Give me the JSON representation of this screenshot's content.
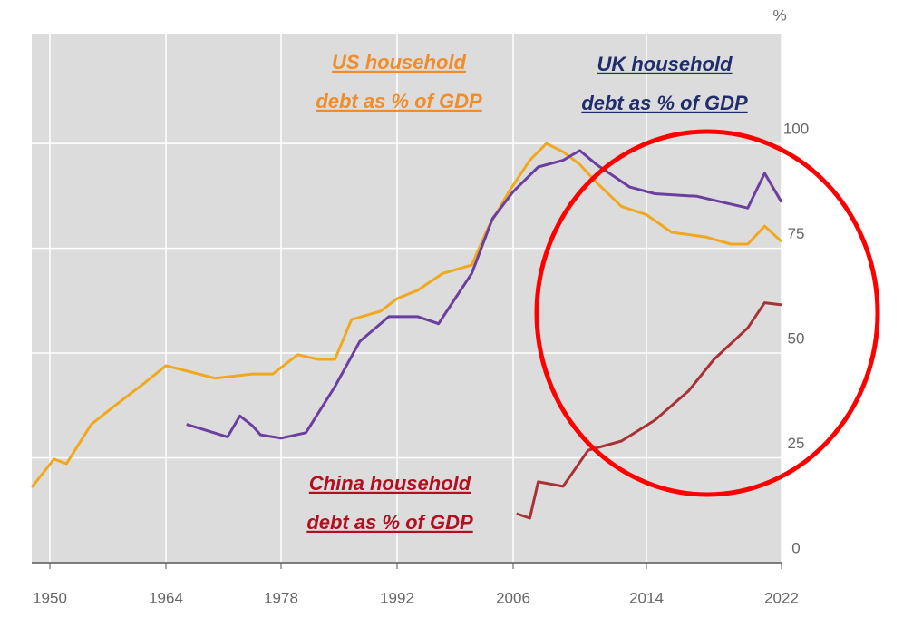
{
  "chart_data": {
    "type": "line",
    "unit_label": "%",
    "xlim": [
      1948,
      2022
    ],
    "xticks": [
      1950,
      1964,
      1978,
      1992,
      2006,
      2014,
      2022
    ],
    "ylim": [
      0,
      126
    ],
    "yticks": [
      0,
      25,
      50,
      75,
      100
    ],
    "grid": true,
    "annotations": [
      {
        "lines": [
          "US household",
          "debt as % of GDP"
        ],
        "color": "#f28c28"
      },
      {
        "lines": [
          "UK household",
          "debt as % of GDP"
        ],
        "color": "#1f2d6b"
      },
      {
        "lines": [
          "China household",
          "debt as % of GDP"
        ],
        "color": "#b01020"
      }
    ],
    "series": [
      {
        "color": "#f0a81e",
        "x": [
          1948,
          1950.5,
          1952,
          1955,
          1958,
          1961.5,
          1964,
          1966,
          1970,
          1974.5,
          1977,
          1980,
          1982.5,
          1984.5,
          1986.5,
          1990,
          1992,
          1994.5,
          1997.5,
          2001,
          2003,
          2005.5,
          2007,
          2008,
          2009,
          2010,
          2011,
          2012.5,
          2014,
          2015.5,
          2017.5,
          2019,
          2020,
          2021,
          2022
        ],
        "values": [
          18,
          24.7,
          23.6,
          33,
          37.7,
          43,
          47,
          46,
          44,
          45,
          45,
          49.6,
          48.5,
          48.5,
          58,
          60,
          63,
          65,
          69,
          71,
          80,
          88.5,
          96,
          100,
          98,
          95,
          90.7,
          85,
          83,
          78.8,
          77.7,
          76,
          76,
          80.3,
          76.6
        ]
      },
      {
        "color": "#6b3fa0",
        "x": [
          1966.5,
          1971.5,
          1973,
          1974.5,
          1975.5,
          1978,
          1981,
          1984.5,
          1987.5,
          1991,
          1994.5,
          1997,
          2001,
          2003.5,
          2006,
          2007.5,
          2009,
          2010,
          2011,
          2013,
          2014.5,
          2017,
          2018.5,
          2020,
          2021,
          2022
        ],
        "values": [
          33,
          30,
          35,
          32.7,
          30.5,
          29.7,
          31,
          42,
          52.8,
          58.7,
          58.7,
          57,
          69,
          82,
          88.5,
          94.4,
          96,
          98.3,
          95,
          89.6,
          88,
          87.4,
          86,
          84.6,
          92.9,
          86
        ]
      },
      {
        "color": "#a83236",
        "x": [
          2006.2,
          2007,
          2007.5,
          2009,
          2010.5,
          2012.5,
          2014.5,
          2016.5,
          2018,
          2020,
          2021,
          2022
        ],
        "values": [
          11.7,
          10.6,
          19.3,
          18.2,
          26.8,
          29,
          34,
          41,
          48.5,
          56,
          62,
          61.5
        ]
      }
    ]
  }
}
